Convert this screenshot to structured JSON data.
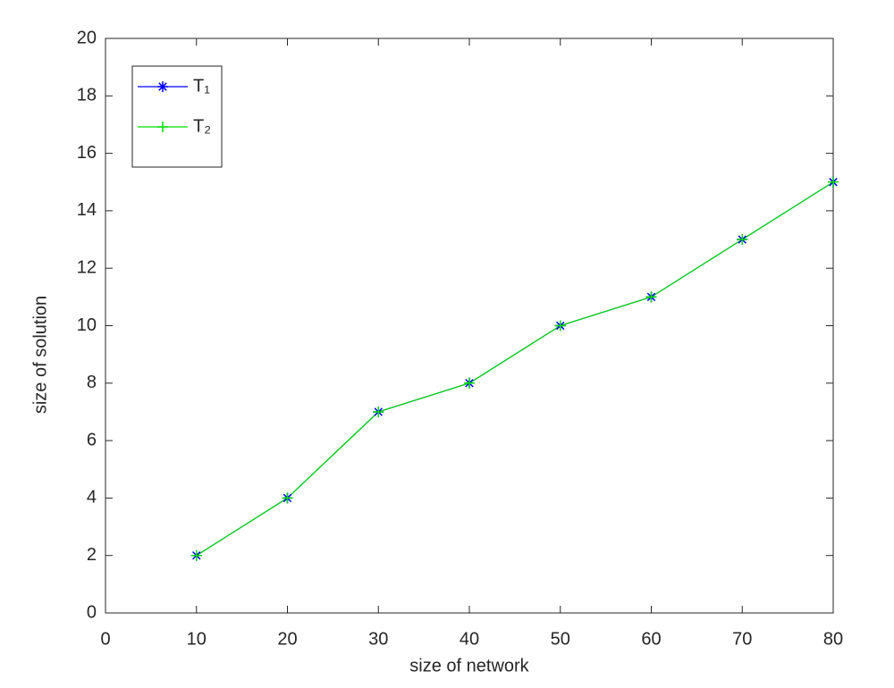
{
  "chart_data": {
    "type": "line",
    "x": [
      10,
      20,
      30,
      40,
      50,
      60,
      70,
      80
    ],
    "series": [
      {
        "name": "T₁",
        "color": "#0000ff",
        "marker": "asterisk",
        "values": [
          2,
          4,
          7,
          8,
          10,
          11,
          13,
          15
        ]
      },
      {
        "name": "T₂",
        "color": "#00dd00",
        "marker": "plus",
        "values": [
          2,
          4,
          7,
          8,
          10,
          11,
          13,
          15
        ]
      }
    ],
    "xlabel": "size of network",
    "ylabel": "size of solution",
    "xlim": [
      0,
      80
    ],
    "ylim": [
      0,
      20
    ],
    "xticks": [
      0,
      10,
      20,
      30,
      40,
      50,
      60,
      70,
      80
    ],
    "yticks": [
      0,
      2,
      4,
      6,
      8,
      10,
      12,
      14,
      16,
      18,
      20
    ],
    "grid": false,
    "legend": "top-left"
  }
}
